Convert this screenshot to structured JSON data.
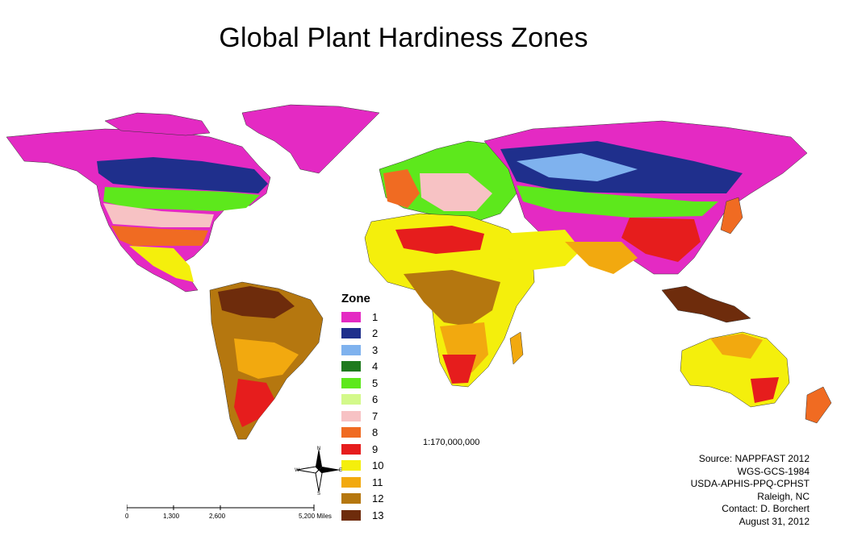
{
  "title": "Global Plant Hardiness Zones",
  "legend": {
    "title": "Zone",
    "items": [
      {
        "label": "1",
        "color": "#e42ac3"
      },
      {
        "label": "2",
        "color": "#1f2f8c"
      },
      {
        "label": "3",
        "color": "#7fb2ee"
      },
      {
        "label": "4",
        "color": "#1f7a1e"
      },
      {
        "label": "5",
        "color": "#5de81c"
      },
      {
        "label": "6",
        "color": "#d3f98a"
      },
      {
        "label": "7",
        "color": "#f7c2c4"
      },
      {
        "label": "8",
        "color": "#f06b22"
      },
      {
        "label": "9",
        "color": "#e61d1d"
      },
      {
        "label": "10",
        "color": "#f4ef0c"
      },
      {
        "label": "11",
        "color": "#f2a90f"
      },
      {
        "label": "12",
        "color": "#b5770f"
      },
      {
        "label": "13",
        "color": "#6e2c0c"
      }
    ]
  },
  "scale_ratio": "1:170,000,000",
  "scale_bar": {
    "labels": [
      "0",
      "1,300",
      "2,600",
      "5,200 Miles"
    ]
  },
  "compass": {
    "n": "N",
    "e": "E",
    "s": "S",
    "w": "W"
  },
  "source_lines": [
    "Source: NAPPFAST 2012",
    "WGS-GCS-1984",
    "USDA-APHIS-PPQ-CPHST",
    "Raleigh, NC",
    "Contact: D. Borchert",
    "August 31, 2012"
  ]
}
